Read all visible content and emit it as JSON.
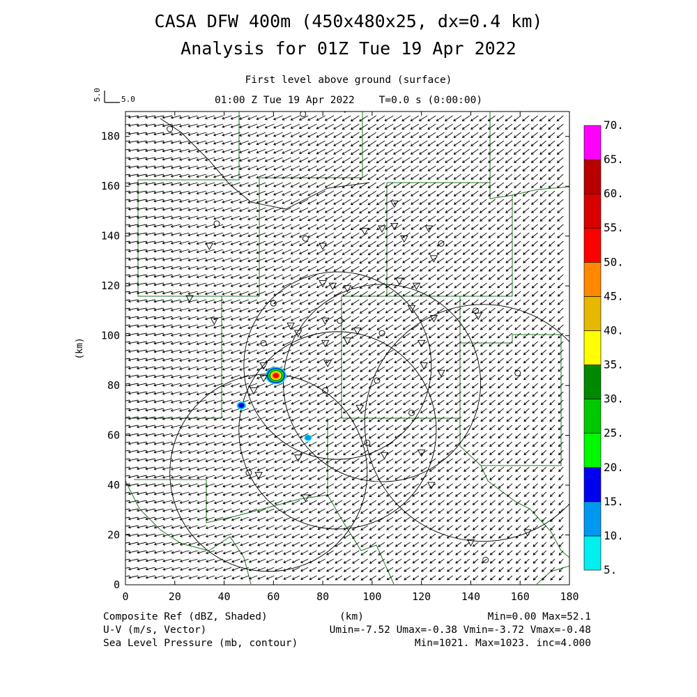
{
  "header": {
    "title": "CASA DFW 400m (450x480x25, dx=0.4 km)",
    "subtitle": "Analysis for 01Z Tue 19 Apr 2022",
    "level": "First level above ground (surface)",
    "valid_time": "01:00 Z Tue 19 Apr 2022    T=0.0 s (0:00:00)"
  },
  "vector_key": {
    "side_label": "5.0",
    "label": "5.0"
  },
  "axes": {
    "x_ticks": [
      "0",
      "20",
      "40",
      "60",
      "80",
      "100",
      "120",
      "140",
      "160",
      "180"
    ],
    "y_ticks": [
      "0",
      "20",
      "40",
      "60",
      "80",
      "100",
      "120",
      "140",
      "160",
      "180"
    ],
    "x_label": "(km)",
    "y_label": "(km)",
    "x_range": [
      0,
      180
    ],
    "y_range": [
      0,
      190
    ]
  },
  "colorbar": {
    "labels": [
      "5.",
      "10.",
      "15.",
      "20.",
      "25.",
      "30.",
      "35.",
      "40.",
      "45.",
      "50.",
      "55.",
      "60.",
      "65.",
      "70."
    ],
    "colors": [
      "#00f0f0",
      "#0098f0",
      "#0000f0",
      "#00f800",
      "#00c800",
      "#008800",
      "#ffff00",
      "#e6b800",
      "#ff8800",
      "#ff0000",
      "#d80000",
      "#b80000",
      "#ff00ff"
    ]
  },
  "footer": {
    "line1_left": "Composite Ref (dBZ, Shaded)",
    "line1_right": "Min=0.00 Max=52.1",
    "line2_left": "U-V (m/s, Vector)",
    "line2_right": "Umin=-7.52 Umax=-0.38 Vmin=-3.72 Vmax=-0.48",
    "line3_left": "Sea Level Pressure (mb, contour)",
    "line3_right": "Min=1021. Max=1023. inc=4.000"
  },
  "map_data": {
    "radar_rings": [
      {
        "center_km": [
          104,
          81
        ],
        "radius_km": 40
      },
      {
        "center_km": [
          86,
          88
        ],
        "radius_km": 38
      },
      {
        "center_km": [
          86,
          62
        ],
        "radius_km": 40
      },
      {
        "center_km": [
          58,
          45
        ],
        "radius_km": 40
      },
      {
        "center_km": [
          145,
          65
        ],
        "radius_km": 48
      }
    ],
    "reflectivity_cells": [
      {
        "center_km": [
          61,
          84
        ],
        "dbz": 52
      },
      {
        "center_km": [
          47,
          72
        ],
        "dbz": 15
      },
      {
        "center_km": [
          74,
          59
        ],
        "dbz": 10
      }
    ],
    "stations": [
      {
        "type": "circle",
        "km": [
          18,
          183
        ]
      },
      {
        "type": "circle",
        "km": [
          72,
          189
        ]
      },
      {
        "type": "tri",
        "km": [
          89,
          191
        ]
      },
      {
        "type": "circle",
        "km": [
          37,
          145
        ]
      },
      {
        "type": "tri",
        "km": [
          34,
          136
        ]
      },
      {
        "type": "circle",
        "km": [
          73,
          139
        ]
      },
      {
        "type": "tri",
        "km": [
          80,
          136
        ]
      },
      {
        "type": "tri",
        "km": [
          97,
          142
        ]
      },
      {
        "type": "tri",
        "km": [
          104,
          143
        ]
      },
      {
        "type": "tri",
        "km": [
          109,
          153
        ]
      },
      {
        "type": "tri",
        "km": [
          109,
          144
        ]
      },
      {
        "type": "tri",
        "km": [
          113,
          139
        ]
      },
      {
        "type": "tri",
        "km": [
          123,
          143
        ]
      },
      {
        "type": "circle",
        "km": [
          128,
          137
        ]
      },
      {
        "type": "tri",
        "km": [
          125,
          131
        ]
      },
      {
        "type": "tri",
        "km": [
          80,
          121
        ]
      },
      {
        "type": "tri",
        "km": [
          84,
          120
        ]
      },
      {
        "type": "tri",
        "km": [
          90,
          119
        ]
      },
      {
        "type": "tri",
        "km": [
          111,
          122
        ]
      },
      {
        "type": "tri",
        "km": [
          118,
          120
        ]
      },
      {
        "type": "tri",
        "km": [
          26,
          115
        ]
      },
      {
        "type": "circle",
        "km": [
          60,
          113
        ]
      },
      {
        "type": "tri",
        "km": [
          36,
          106
        ]
      },
      {
        "type": "tri",
        "km": [
          67,
          104
        ]
      },
      {
        "type": "tri",
        "km": [
          70,
          101
        ]
      },
      {
        "type": "tri",
        "km": [
          81,
          106
        ]
      },
      {
        "type": "circle",
        "km": [
          87,
          106
        ]
      },
      {
        "type": "tri",
        "km": [
          94,
          102
        ]
      },
      {
        "type": "tri",
        "km": [
          90,
          98
        ]
      },
      {
        "type": "tri",
        "km": [
          81,
          97
        ]
      },
      {
        "type": "circle",
        "km": [
          104,
          101
        ]
      },
      {
        "type": "tri",
        "km": [
          116,
          111
        ]
      },
      {
        "type": "tri",
        "km": [
          125,
          107
        ]
      },
      {
        "type": "tri",
        "km": [
          143,
          108
        ]
      },
      {
        "type": "circle",
        "km": [
          142,
          110
        ]
      },
      {
        "type": "circle",
        "km": [
          56,
          97
        ]
      },
      {
        "type": "tri",
        "km": [
          120,
          97
        ]
      },
      {
        "type": "tri",
        "km": [
          82,
          89
        ]
      },
      {
        "type": "tri",
        "km": [
          121,
          88
        ]
      },
      {
        "type": "tri",
        "km": [
          128,
          85
        ]
      },
      {
        "type": "circle",
        "km": [
          159,
          85
        ]
      },
      {
        "type": "tri",
        "km": [
          56,
          88
        ]
      },
      {
        "type": "tri",
        "km": [
          56,
          83
        ]
      },
      {
        "type": "tri",
        "km": [
          52,
          78
        ]
      },
      {
        "type": "circle",
        "km": [
          81,
          78
        ]
      },
      {
        "type": "circle",
        "km": [
          102,
          82
        ]
      },
      {
        "type": "tri",
        "km": [
          95,
          71
        ]
      },
      {
        "type": "circle",
        "km": [
          116,
          69
        ]
      },
      {
        "type": "circle",
        "km": [
          98,
          57
        ]
      },
      {
        "type": "tri",
        "km": [
          105,
          52
        ]
      },
      {
        "type": "tri",
        "km": [
          120,
          53
        ]
      },
      {
        "type": "tri",
        "km": [
          70,
          51
        ]
      },
      {
        "type": "circle",
        "km": [
          50,
          45
        ]
      },
      {
        "type": "tri",
        "km": [
          54,
          44
        ]
      },
      {
        "type": "tri",
        "km": [
          124,
          40
        ]
      },
      {
        "type": "tri",
        "km": [
          73,
          35
        ]
      },
      {
        "type": "tri",
        "km": [
          140,
          17
        ]
      },
      {
        "type": "circle",
        "km": [
          146,
          10
        ]
      },
      {
        "type": "tri",
        "km": [
          163,
          21
        ]
      }
    ]
  }
}
